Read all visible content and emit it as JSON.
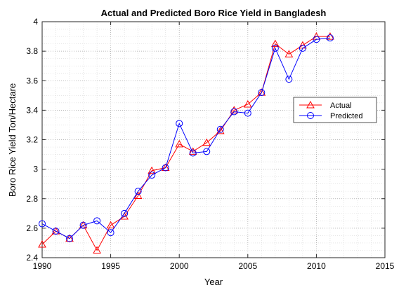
{
  "chart_data": {
    "type": "line",
    "title": "Actual and Predicted Boro Rice Yield in Bangladesh",
    "xlabel": "Year",
    "ylabel": "Boro Rice Yield Ton/Hectare",
    "xlim": [
      1990,
      2015
    ],
    "ylim": [
      2.4,
      4.0
    ],
    "xticks": [
      1990,
      1995,
      2000,
      2005,
      2010,
      2015
    ],
    "yticks": [
      2.4,
      2.6,
      2.8,
      3.0,
      3.2,
      3.4,
      3.6,
      3.8,
      4.0
    ],
    "xtick_labels": [
      "1990",
      "1995",
      "2000",
      "2005",
      "2010",
      "2015"
    ],
    "ytick_labels": [
      "2.4",
      "2.6",
      "2.8",
      "3",
      "3.2",
      "3.4",
      "3.6",
      "3.8",
      "4"
    ],
    "grid": true,
    "legend_position": "right",
    "x": [
      1990,
      1991,
      1992,
      1993,
      1994,
      1995,
      1996,
      1997,
      1998,
      1999,
      2000,
      2001,
      2002,
      2003,
      2004,
      2005,
      2006,
      2007,
      2008,
      2009,
      2010,
      2011
    ],
    "series": [
      {
        "name": "Actual",
        "color": "#ff0000",
        "marker": "triangle",
        "values": [
          2.49,
          2.58,
          2.53,
          2.62,
          2.45,
          2.62,
          2.68,
          2.82,
          2.99,
          3.01,
          3.17,
          3.12,
          3.18,
          3.26,
          3.4,
          3.44,
          3.52,
          3.85,
          3.78,
          3.84,
          3.9,
          3.9
        ]
      },
      {
        "name": "Predicted",
        "color": "#0000ff",
        "marker": "circle",
        "values": [
          2.63,
          2.58,
          2.53,
          2.62,
          2.65,
          2.57,
          2.7,
          2.85,
          2.96,
          3.01,
          3.31,
          3.11,
          3.12,
          3.27,
          3.39,
          3.38,
          3.52,
          3.82,
          3.61,
          3.82,
          3.88,
          3.89
        ]
      }
    ]
  }
}
